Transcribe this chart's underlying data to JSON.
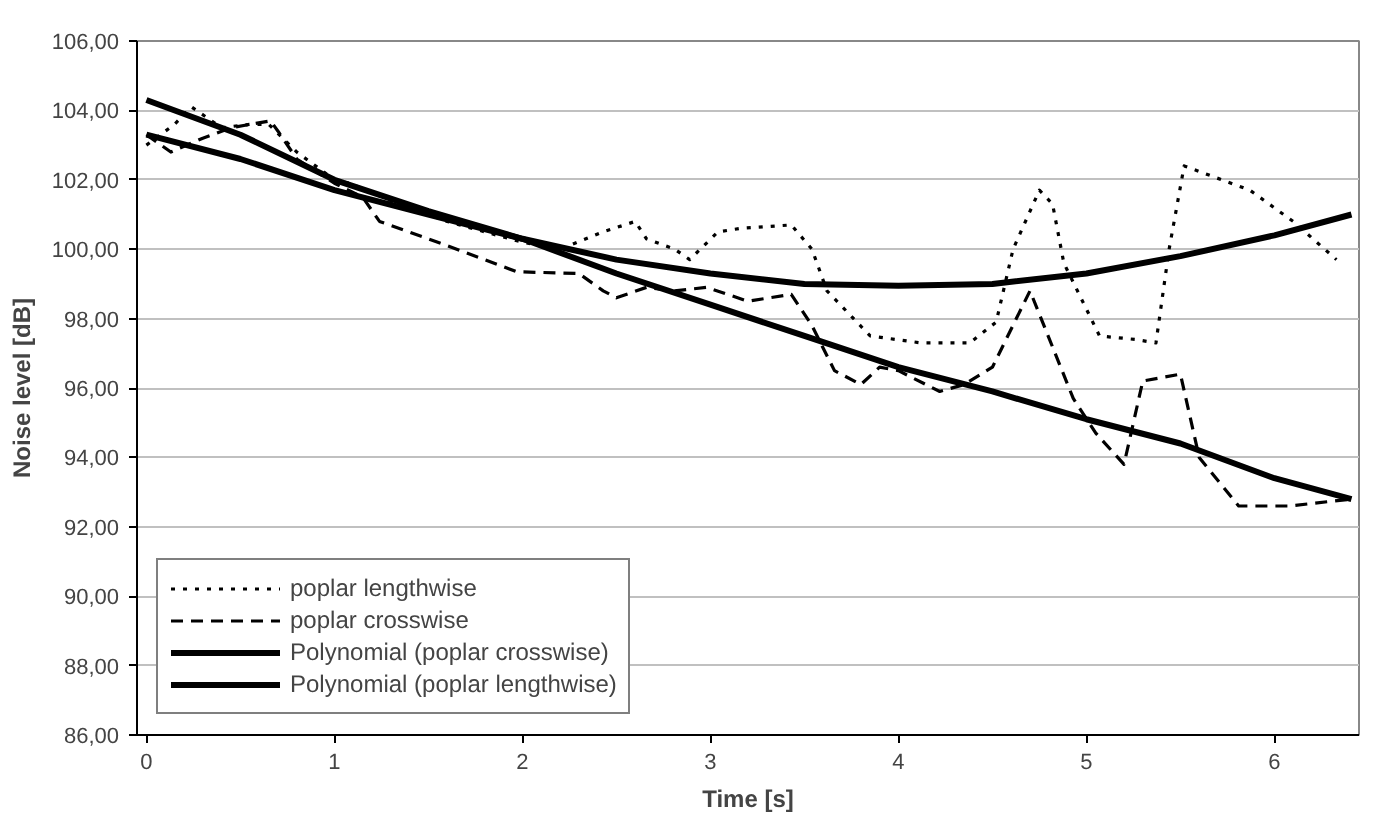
{
  "chart_data": {
    "type": "line",
    "xlabel": "Time [s]",
    "ylabel": "Noise level [dB]",
    "xlim": [
      -0.05,
      6.45
    ],
    "ylim": [
      86,
      106
    ],
    "xticks": [
      0,
      1,
      2,
      3,
      4,
      5,
      6
    ],
    "yticks": [
      {
        "value": 86,
        "label": "86,00"
      },
      {
        "value": 88,
        "label": "88,00"
      },
      {
        "value": 90,
        "label": "90,00"
      },
      {
        "value": 92,
        "label": "92,00"
      },
      {
        "value": 94,
        "label": "94,00"
      },
      {
        "value": 96,
        "label": "96,00"
      },
      {
        "value": 98,
        "label": "98,00"
      },
      {
        "value": 100,
        "label": "100,00"
      },
      {
        "value": 102,
        "label": "102,00"
      },
      {
        "value": 104,
        "label": "104,00"
      },
      {
        "value": 106,
        "label": "106,00"
      }
    ],
    "grid": "y",
    "legend": "bottom left",
    "marker": "none",
    "series": [
      {
        "name": "poplar lengthwise",
        "color": "#000000",
        "line_style": "dotted",
        "x": [
          0,
          0.15,
          0.24,
          0.4,
          0.55,
          0.65,
          0.8,
          1.0,
          1.08,
          1.3,
          1.6,
          2.0,
          2.2,
          2.43,
          2.6,
          2.66,
          2.81,
          2.89,
          3.04,
          3.16,
          3.43,
          3.54,
          3.62,
          3.85,
          4.12,
          4.38,
          4.52,
          4.61,
          4.75,
          4.82,
          4.88,
          5.07,
          5.26,
          5.37,
          5.44,
          5.52,
          5.87,
          6.1,
          6.33
        ],
        "values": [
          103.0,
          103.6,
          104.1,
          103.5,
          103.6,
          103.6,
          102.8,
          102.0,
          101.9,
          101.4,
          100.8,
          100.2,
          100.0,
          100.5,
          100.8,
          100.3,
          100.0,
          99.7,
          100.5,
          100.6,
          100.7,
          100.0,
          98.8,
          97.5,
          97.3,
          97.3,
          97.9,
          100.0,
          101.7,
          101.3,
          99.6,
          97.5,
          97.4,
          97.3,
          100.0,
          102.4,
          101.7,
          100.8,
          99.7
        ]
      },
      {
        "name": "poplar crosswise",
        "color": "#000000",
        "line_style": "dashed",
        "x": [
          0,
          0.13,
          0.3,
          0.45,
          0.66,
          0.7,
          0.8,
          1.0,
          1.15,
          1.24,
          1.6,
          1.97,
          2.3,
          2.43,
          2.5,
          2.66,
          2.81,
          2.98,
          3.2,
          3.43,
          3.54,
          3.66,
          3.8,
          3.9,
          4.0,
          4.22,
          4.35,
          4.5,
          4.7,
          4.93,
          5.05,
          5.2,
          5.3,
          5.5,
          5.6,
          5.81,
          6.08,
          6.41
        ],
        "values": [
          103.3,
          102.8,
          103.2,
          103.5,
          103.7,
          103.4,
          102.6,
          101.9,
          101.5,
          100.8,
          100.1,
          99.35,
          99.3,
          98.8,
          98.6,
          98.9,
          98.8,
          98.9,
          98.5,
          98.7,
          97.8,
          96.5,
          96.1,
          96.6,
          96.5,
          95.9,
          96.1,
          96.6,
          98.8,
          95.7,
          94.7,
          93.8,
          96.2,
          96.4,
          94.0,
          92.6,
          92.6,
          92.8
        ]
      },
      {
        "name": "Polynomial (poplar crosswise)",
        "color": "#000000",
        "line_style": "solid",
        "x": [
          0,
          0.5,
          1,
          1.5,
          2,
          2.5,
          3,
          3.5,
          4,
          4.5,
          5,
          5.5,
          6,
          6.41
        ],
        "values": [
          104.3,
          103.3,
          102.0,
          101.1,
          100.3,
          99.3,
          98.4,
          97.5,
          96.6,
          95.9,
          95.1,
          94.4,
          93.4,
          92.8
        ]
      },
      {
        "name": "Polynomial (poplar lengthwise)",
        "color": "#000000",
        "line_style": "solid",
        "x": [
          0,
          0.5,
          1,
          1.5,
          2,
          2.5,
          3,
          3.5,
          4,
          4.5,
          5,
          5.5,
          6,
          6.41
        ],
        "values": [
          103.3,
          102.6,
          101.7,
          101.0,
          100.3,
          99.7,
          99.3,
          99.0,
          98.95,
          99.0,
          99.3,
          99.8,
          100.4,
          101.0
        ]
      }
    ]
  }
}
